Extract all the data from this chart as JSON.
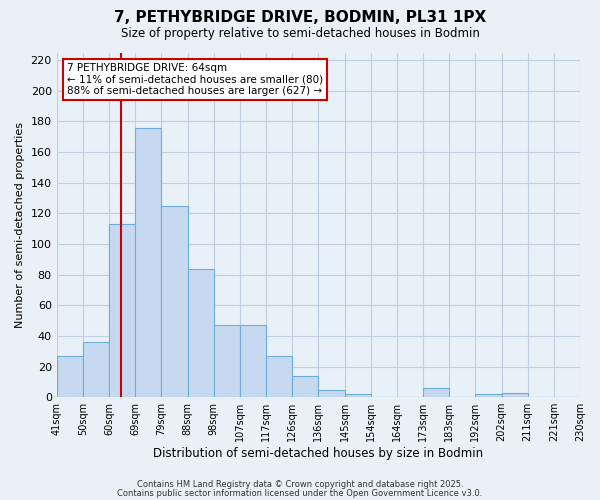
{
  "title": "7, PETHYBRIDGE DRIVE, BODMIN, PL31 1PX",
  "subtitle": "Size of property relative to semi-detached houses in Bodmin",
  "xlabel": "Distribution of semi-detached houses by size in Bodmin",
  "ylabel": "Number of semi-detached properties",
  "bar_values": [
    27,
    36,
    113,
    176,
    125,
    84,
    47,
    47,
    27,
    14,
    5,
    2,
    0,
    0,
    6,
    0,
    2,
    3,
    0,
    0
  ],
  "bar_color": "#c6d9f0",
  "bar_edge_color": "#6baed6",
  "background_color": "#eaf0f8",
  "plot_bg_color": "#e8f0f8",
  "grid_color": "#c0cfe0",
  "property_line_x": 2,
  "property_line_color": "#cc0000",
  "annotation_title": "7 PETHYBRIDGE DRIVE: 64sqm",
  "annotation_line1": "← 11% of semi-detached houses are smaller (80)",
  "annotation_line2": "88% of semi-detached houses are larger (627) →",
  "annotation_box_color": "#ffffff",
  "annotation_box_edge": "#cc0000",
  "ylim": [
    0,
    225
  ],
  "yticks": [
    0,
    20,
    40,
    60,
    80,
    100,
    120,
    140,
    160,
    180,
    200,
    220
  ],
  "footnote1": "Contains HM Land Registry data © Crown copyright and database right 2025.",
  "footnote2": "Contains public sector information licensed under the Open Government Licence v3.0.",
  "tick_labels": [
    "41sqm",
    "50sqm",
    "60sqm",
    "69sqm",
    "79sqm",
    "88sqm",
    "98sqm",
    "107sqm",
    "117sqm",
    "126sqm",
    "136sqm",
    "145sqm",
    "154sqm",
    "164sqm",
    "173sqm",
    "183sqm",
    "192sqm",
    "202sqm",
    "211sqm",
    "221sqm",
    "230sqm"
  ]
}
